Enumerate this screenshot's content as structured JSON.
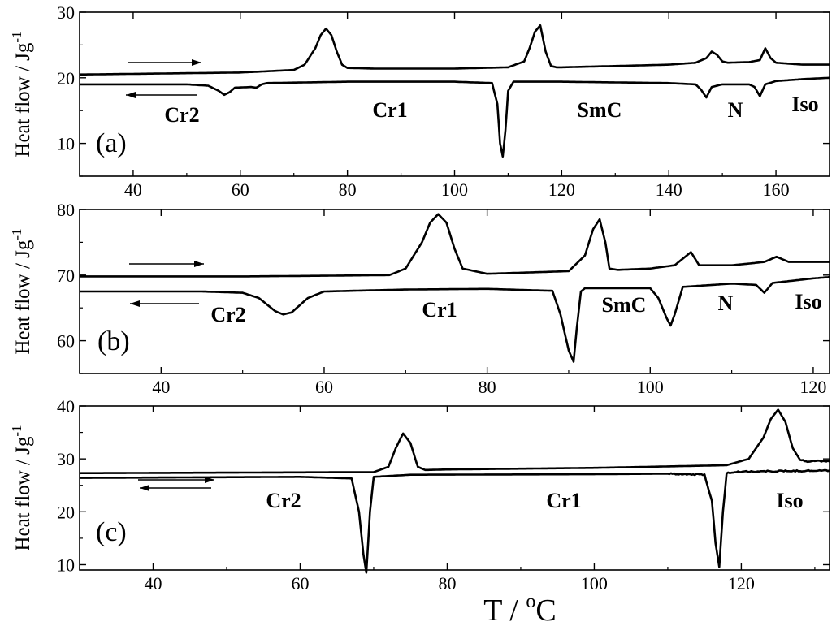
{
  "chart_data": [
    {
      "type": "line",
      "panel_label": "(a)",
      "xlim": [
        30,
        170
      ],
      "ylim": [
        5,
        30
      ],
      "xticks": [
        40,
        60,
        80,
        100,
        120,
        140,
        160
      ],
      "yticks": [
        10,
        20,
        30
      ],
      "ylabel": "Heat flow / Jg",
      "ylabel_sup": "-1",
      "series": [
        {
          "direction": "heating",
          "x": [
            30,
            40,
            50,
            60,
            70,
            72,
            74,
            75,
            76,
            77,
            78,
            79,
            80,
            85,
            100,
            110,
            113,
            114,
            115,
            116,
            117,
            118,
            119,
            120,
            130,
            140,
            145,
            147,
            148,
            149,
            150,
            151,
            155,
            157,
            158,
            159,
            160,
            165,
            170
          ],
          "y": [
            20.5,
            20.6,
            20.7,
            20.8,
            21.2,
            22.0,
            24.5,
            26.5,
            27.5,
            26.5,
            24.0,
            22.0,
            21.5,
            21.4,
            21.4,
            21.6,
            22.5,
            24.5,
            27.0,
            28.0,
            24.0,
            21.8,
            21.6,
            21.6,
            21.8,
            22.0,
            22.3,
            23.0,
            24.0,
            23.5,
            22.5,
            22.3,
            22.4,
            22.7,
            24.5,
            23.0,
            22.3,
            22.0,
            22.0
          ]
        },
        {
          "direction": "cooling",
          "x": [
            30,
            50,
            54,
            56,
            57,
            58,
            59,
            62,
            63,
            64,
            65,
            80,
            100,
            107,
            108,
            108.5,
            109,
            109.5,
            110,
            111,
            120,
            140,
            145,
            146,
            147,
            148,
            150,
            155,
            156,
            157,
            158,
            160,
            165,
            170
          ],
          "y": [
            19.0,
            19.0,
            18.8,
            18.0,
            17.4,
            17.8,
            18.5,
            18.6,
            18.5,
            19.0,
            19.2,
            19.4,
            19.4,
            19.2,
            16.0,
            10.0,
            8.0,
            12.0,
            18.0,
            19.4,
            19.4,
            19.2,
            19.0,
            18.2,
            17.0,
            18.6,
            19.0,
            19.0,
            18.6,
            17.2,
            19.0,
            19.5,
            19.8,
            20.0
          ]
        }
      ],
      "annotations": [
        "Cr2",
        "Cr1",
        "SmC",
        "N",
        "Iso"
      ]
    },
    {
      "type": "line",
      "panel_label": "(b)",
      "xlim": [
        30,
        122
      ],
      "ylim": [
        55,
        80
      ],
      "xticks": [
        40,
        60,
        80,
        100,
        120
      ],
      "yticks": [
        60,
        70,
        80
      ],
      "ylabel": "Heat flow / Jg",
      "ylabel_sup": "-1",
      "series": [
        {
          "direction": "heating",
          "x": [
            30,
            40,
            50,
            60,
            68,
            70,
            72,
            73,
            74,
            75,
            76,
            77,
            80,
            90,
            92,
            93,
            93.8,
            94.5,
            95,
            96,
            100,
            103,
            104,
            105,
            106,
            110,
            114,
            115.5,
            117,
            122
          ],
          "y": [
            69.8,
            69.8,
            69.8,
            69.9,
            70.0,
            71.0,
            75.0,
            78.0,
            79.3,
            78.0,
            74.0,
            71.0,
            70.2,
            70.6,
            73.0,
            77.0,
            78.5,
            75.0,
            71.0,
            70.8,
            71.0,
            71.5,
            72.5,
            73.5,
            71.5,
            71.5,
            72.0,
            72.8,
            72.0,
            72.0
          ]
        },
        {
          "direction": "cooling",
          "x": [
            30,
            45,
            50,
            52,
            54,
            55,
            56,
            58,
            60,
            70,
            80,
            88,
            89,
            90,
            90.6,
            91,
            91.5,
            92,
            100,
            101,
            102,
            102.5,
            103,
            104,
            110,
            113,
            114,
            115,
            120,
            122
          ],
          "y": [
            67.5,
            67.5,
            67.3,
            66.5,
            64.5,
            64.0,
            64.3,
            66.5,
            67.5,
            67.8,
            67.9,
            67.6,
            64.0,
            58.5,
            56.8,
            62.0,
            67.5,
            68.0,
            68.0,
            66.5,
            63.5,
            62.3,
            64.0,
            68.2,
            68.7,
            68.5,
            67.3,
            68.8,
            69.5,
            69.7
          ]
        }
      ],
      "annotations": [
        "Cr2",
        "Cr1",
        "SmC",
        "N",
        "Iso"
      ]
    },
    {
      "type": "line",
      "panel_label": "(c)",
      "xlim": [
        30,
        132
      ],
      "ylim": [
        9,
        40
      ],
      "xticks": [
        40,
        60,
        80,
        100,
        120
      ],
      "yticks": [
        10,
        20,
        30,
        40
      ],
      "ylabel": "Heat flow / Jg",
      "ylabel_sup": "-1",
      "series": [
        {
          "direction": "heating",
          "x": [
            30,
            50,
            70,
            72,
            73,
            74,
            75,
            76,
            77,
            80,
            100,
            118,
            121,
            123,
            124,
            125,
            126,
            127,
            128,
            129,
            130,
            132
          ],
          "y": [
            27.3,
            27.4,
            27.5,
            28.5,
            32.0,
            34.8,
            33.0,
            28.5,
            27.9,
            28.0,
            28.3,
            28.8,
            30.0,
            34.0,
            37.5,
            39.3,
            37.0,
            32.0,
            29.8,
            29.5,
            29.6,
            29.6
          ],
          "noise_after_x": 128
        },
        {
          "direction": "cooling",
          "x": [
            30,
            60,
            67,
            68,
            68.6,
            69,
            69.5,
            70,
            75,
            100,
            110,
            113,
            115,
            116,
            116.5,
            117,
            117.5,
            118,
            120,
            132
          ],
          "y": [
            26.4,
            26.6,
            26.3,
            20.0,
            12.0,
            8.5,
            20.0,
            26.6,
            27.0,
            27.1,
            27.2,
            27.1,
            27.0,
            22.0,
            14.0,
            9.5,
            20.0,
            27.3,
            27.6,
            27.8
          ],
          "noise_after_x": 110
        }
      ],
      "annotations": [
        "Cr2",
        "Cr1",
        "Iso"
      ]
    }
  ],
  "xlabel": "T / ",
  "xlabel_sup": "o",
  "xlabel_unit": "C",
  "line_color": "#000000"
}
